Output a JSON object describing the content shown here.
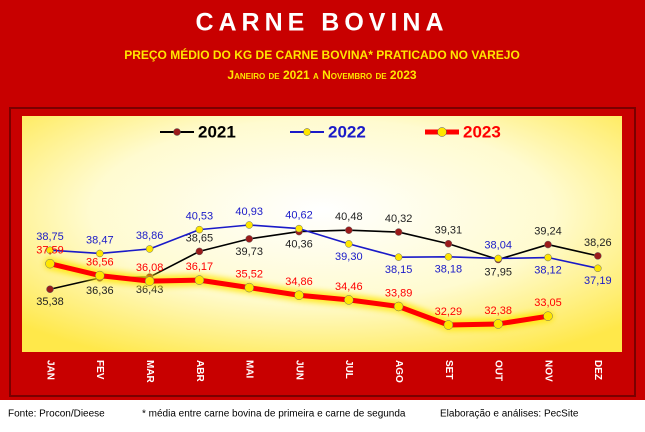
{
  "chart_data": {
    "type": "line",
    "title": "CARNE BOVINA",
    "subtitle": "PREÇO MÉDIO DO KG DE CARNE BOVINA* PRATICADO NO VAREJO",
    "period": "Janeiro de 2021 a Novembro de 2023",
    "categories": [
      "JAN",
      "FEV",
      "MAR",
      "ABR",
      "MAI",
      "JUN",
      "JUL",
      "AGO",
      "SET",
      "OUT",
      "NOV",
      "DEZ"
    ],
    "series": [
      {
        "name": "2021",
        "color": "#000000",
        "marker_color": "#9b1b1b",
        "values": [
          35.38,
          36.36,
          36.43,
          38.65,
          39.73,
          40.36,
          40.48,
          40.32,
          39.31,
          37.95,
          39.24,
          38.26
        ],
        "value_labels": [
          "35,38",
          "36,36",
          "36,43",
          "38,65",
          "39,73",
          "40,36",
          "40,48",
          "40,32",
          "39,31",
          "37,95",
          "39,24",
          "38,26"
        ]
      },
      {
        "name": "2022",
        "color": "#1a1ac8",
        "marker_color": "#ffe600",
        "values": [
          38.75,
          38.47,
          38.86,
          40.53,
          40.93,
          40.62,
          39.3,
          38.15,
          38.18,
          38.04,
          38.12,
          37.19
        ],
        "value_labels": [
          "38,75",
          "38,47",
          "38,86",
          "40,53",
          "40,93",
          "40,62",
          "39,30",
          "38,15",
          "38,18",
          "38,04",
          "38,12",
          "37,19"
        ]
      },
      {
        "name": "2023",
        "color": "#ff0000",
        "marker_color": "#ffe600",
        "values": [
          37.59,
          36.56,
          36.08,
          36.17,
          35.52,
          34.86,
          34.46,
          33.89,
          32.29,
          32.38,
          33.05,
          null
        ],
        "value_labels": [
          "37,59",
          "36,56",
          "36,08",
          "36,17",
          "35,52",
          "34,86",
          "34,46",
          "33,89",
          "32,29",
          "32,38",
          "33,05",
          null
        ]
      }
    ],
    "footer": {
      "source": "Fonte: Procon/Dieese",
      "note": "* média entre carne bovina de primeira e carne de segunda",
      "credit": "Elaboração e análises: PecSite"
    }
  }
}
